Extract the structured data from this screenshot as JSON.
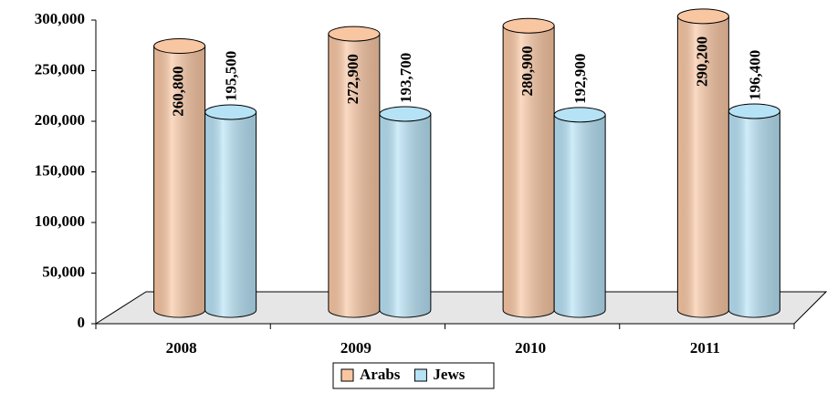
{
  "chart_data": {
    "type": "cylinder-bar",
    "categories": [
      "2008",
      "2009",
      "2010",
      "2011"
    ],
    "series": [
      {
        "name": "Arabs",
        "color": "#f9c6a2",
        "values": [
          260800,
          272900,
          280900,
          290200
        ],
        "value_labels": [
          "260,800",
          "272,900",
          "280,900",
          "290,200"
        ]
      },
      {
        "name": "Jews",
        "color": "#b6e2f6",
        "values": [
          195500,
          193700,
          192900,
          196400
        ],
        "value_labels": [
          "195,500",
          "193,700",
          "192,900",
          "196,400"
        ]
      }
    ],
    "ylim": [
      0,
      300000
    ],
    "yticks": [
      0,
      {
        "value": 50000,
        "label": "50,000"
      },
      {
        "value": 100000,
        "label": "100,000"
      },
      {
        "value": 150000,
        "label": "150,000"
      },
      {
        "value": 200000,
        "label": "200,000"
      },
      {
        "value": 250000,
        "label": "250,000"
      },
      {
        "value": 300000,
        "label": "300,000"
      }
    ],
    "legend": "bottom"
  }
}
